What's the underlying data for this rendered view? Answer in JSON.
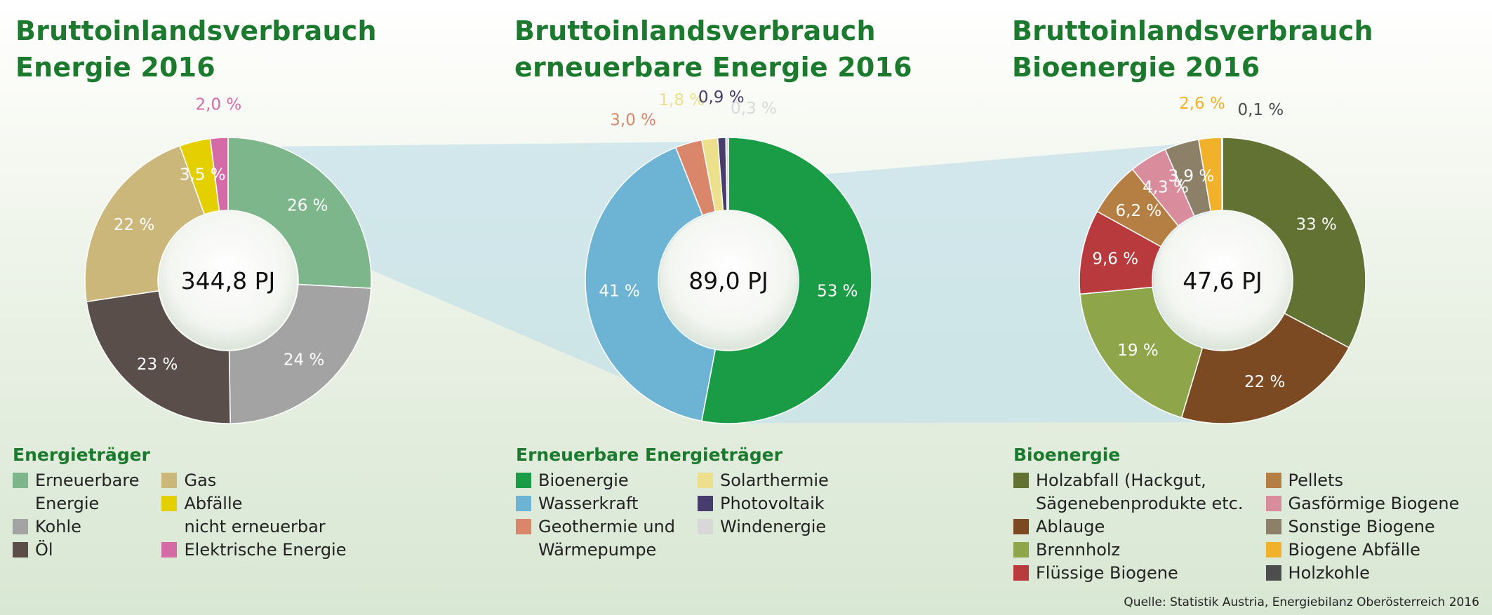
{
  "chart_data": [
    {
      "type": "pie",
      "title_lines": [
        "Bruttoinlandsverbrauch",
        "Energie 2016"
      ],
      "center_label": "344,8 PJ",
      "legend_title": "Energieträger",
      "slices": [
        {
          "name": "Erneuerbare\nEnergie",
          "value": 26,
          "label": "26 %",
          "color": "#7db68a"
        },
        {
          "name": "Kohle",
          "value": 24,
          "label": "24 %",
          "color": "#a3a3a3"
        },
        {
          "name": "Öl",
          "value": 23,
          "label": "23 %",
          "color": "#594e4a"
        },
        {
          "name": "Gas",
          "value": 22,
          "label": "22 %",
          "color": "#cbb77a"
        },
        {
          "name": "Abfälle\nnicht erneuerbar",
          "value": 3.5,
          "label": "3,5 %",
          "color": "#e4d000"
        },
        {
          "name": "Elektrische Energie",
          "value": 2.0,
          "label": "2,0 %",
          "color": "#d46aa6"
        }
      ],
      "legend_columns": [
        [
          0,
          1,
          2
        ],
        [
          3,
          4,
          5
        ]
      ]
    },
    {
      "type": "pie",
      "title_lines": [
        "Bruttoinlandsverbrauch",
        "erneuerbare Energie 2016"
      ],
      "center_label": "89,0 PJ",
      "legend_title": "Erneuerbare Energieträger",
      "slices": [
        {
          "name": "Bioenergie",
          "value": 53,
          "label": "53 %",
          "color": "#1a9c46"
        },
        {
          "name": "Wasserkraft",
          "value": 41,
          "label": "41 %",
          "color": "#6db3d4"
        },
        {
          "name": "Geothermie und\nWärmepumpe",
          "value": 3.0,
          "label": "3,0 %",
          "color": "#d9866a"
        },
        {
          "name": "Solarthermie",
          "value": 1.8,
          "label": "1,8 %",
          "color": "#ede08c"
        },
        {
          "name": "Photovoltaik",
          "value": 0.9,
          "label": "0,9 %",
          "color": "#463c6e"
        },
        {
          "name": "Windenergie",
          "value": 0.3,
          "label": "0,3 %",
          "color": "#d8d8d8"
        }
      ],
      "legend_columns": [
        [
          0,
          1,
          2
        ],
        [
          3,
          4,
          5
        ]
      ]
    },
    {
      "type": "pie",
      "title_lines": [
        "Bruttoinlandsverbrauch",
        "Bioenergie 2016"
      ],
      "center_label": "47,6 PJ",
      "legend_title": "Bioenergie",
      "slices": [
        {
          "name": "Holzabfall (Hackgut,\nSägenebenprodukte etc.",
          "value": 33,
          "label": "33 %",
          "color": "#627233"
        },
        {
          "name": "Ablauge",
          "value": 22,
          "label": "22 %",
          "color": "#7b4a22"
        },
        {
          "name": "Brennholz",
          "value": 19,
          "label": "19 %",
          "color": "#8ea549"
        },
        {
          "name": "Flüssige Biogene",
          "value": 9.6,
          "label": "9,6 %",
          "color": "#b83a3d"
        },
        {
          "name": "Pellets",
          "value": 6.2,
          "label": "6,2 %",
          "color": "#b57f43"
        },
        {
          "name": "Gasförmige Biogene",
          "value": 4.3,
          "label": "4,3 %",
          "color": "#d98d9c"
        },
        {
          "name": "Sonstige Biogene",
          "value": 3.9,
          "label": "3,9 %",
          "color": "#8c8068"
        },
        {
          "name": "Biogene Abfälle",
          "value": 2.6,
          "label": "2,6 %",
          "color": "#f2b12b"
        },
        {
          "name": "Holzkohle",
          "value": 0.1,
          "label": "0,1 %",
          "color": "#4d4d4d"
        }
      ],
      "legend_columns": [
        [
          0,
          1,
          2,
          3
        ],
        [
          4,
          5,
          6,
          7,
          8
        ]
      ]
    }
  ],
  "source": "Quelle: Statistik Austria, Energiebilanz Oberösterreich 2016"
}
